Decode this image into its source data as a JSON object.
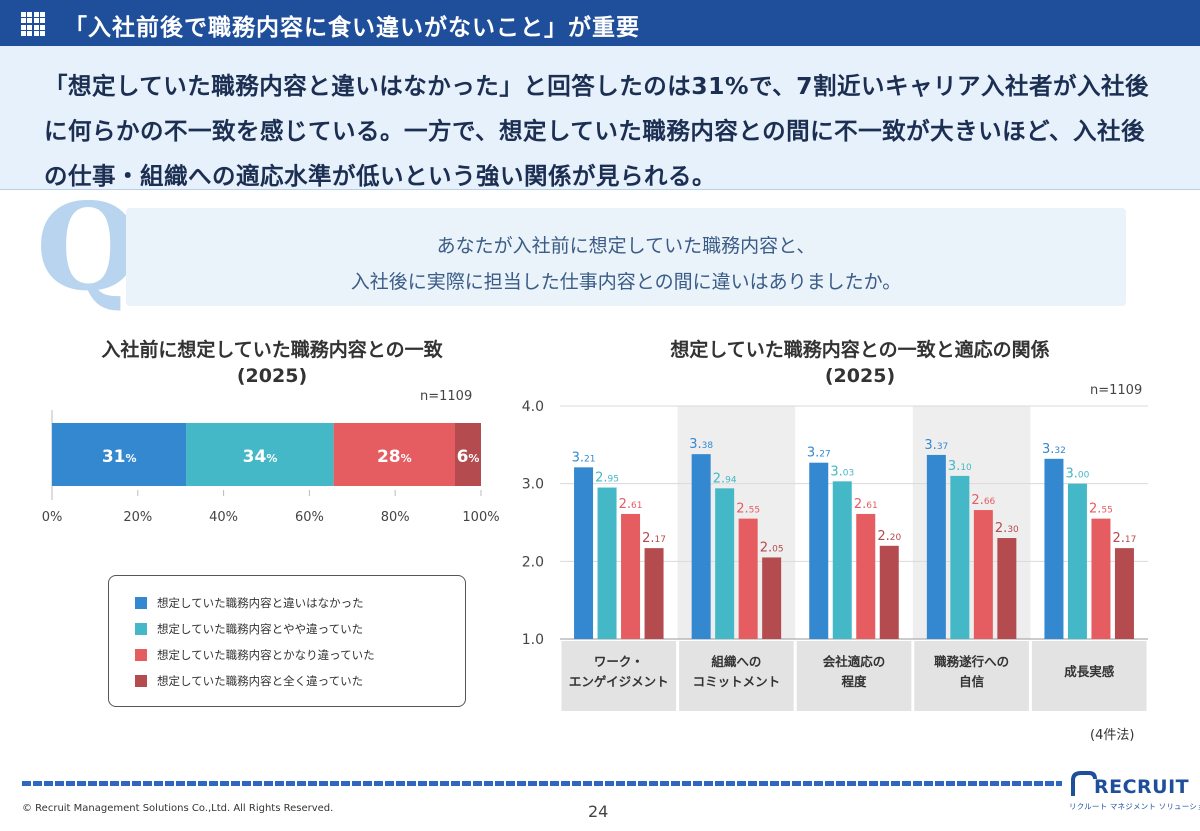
{
  "header": {
    "title": "「入社前後で職務内容に食い違いがないこと」が重要"
  },
  "summary": {
    "text": "「想定していた職務内容と違いはなかった」と回答したのは31%で、7割近いキャリア入社者が入社後に何らかの不一致を感じている。一方で、想定していた職務内容との間に不一致が大きいほど、入社後の仕事・組織への適応水準が低いという強い関係が見られる。"
  },
  "question": {
    "letter": "Q",
    "line1": "あなたが入社前に想定していた職務内容と、",
    "line2": "入社後に実際に担当した仕事内容との間に違いはありましたか。"
  },
  "colors": {
    "blue": "#3488d0",
    "teal": "#44b8c6",
    "red": "#e55c61",
    "darkred": "#b44b4e"
  },
  "legend": {
    "items": [
      {
        "label": "想定していた職務内容と違いはなかった",
        "color": "#3488d0"
      },
      {
        "label": "想定していた職務内容とやや違っていた",
        "color": "#44b8c6"
      },
      {
        "label": "想定していた職務内容とかなり違っていた",
        "color": "#e55c61"
      },
      {
        "label": "想定していた職務内容と全く違っていた",
        "color": "#b44b4e"
      }
    ]
  },
  "footer": {
    "copyright": "© Recruit Management Solutions Co.,Ltd. All Rights Reserved.",
    "page": "24",
    "logo": "RECRUIT",
    "logo_sub": "リクルート マネジメント ソリューションズ"
  },
  "chart_data": [
    {
      "type": "bar",
      "orientation": "horizontal-stacked",
      "title": "入社前に想定していた職務内容との一致",
      "subtitle": "(2025)",
      "n_label": "n=1109",
      "values": [
        31,
        34,
        28,
        6
      ],
      "value_labels": [
        "31",
        "34",
        "28",
        "6"
      ],
      "unit": "%",
      "xticks": [
        "0%",
        "20%",
        "40%",
        "60%",
        "80%",
        "100%"
      ],
      "xlim": [
        0,
        100
      ]
    },
    {
      "type": "bar",
      "title": "想定していた職務内容との一致と適応の関係",
      "subtitle": "(2025)",
      "n_label": "n=1109",
      "note": "(4件法)",
      "ylim": [
        1.0,
        4.0
      ],
      "yticks": [
        "1.0",
        "2.0",
        "3.0",
        "4.0"
      ],
      "categories": [
        [
          "ワーク・",
          "エンゲイジメント"
        ],
        [
          "組織への",
          "コミットメント"
        ],
        [
          "会社適応の",
          "程度"
        ],
        [
          "職務遂行への",
          "自信"
        ],
        [
          "成長実感"
        ]
      ],
      "series": [
        {
          "values": [
            3.21,
            3.38,
            3.27,
            3.37,
            3.32
          ]
        },
        {
          "values": [
            2.95,
            2.94,
            3.03,
            3.1,
            3.0
          ]
        },
        {
          "values": [
            2.61,
            2.55,
            2.61,
            2.66,
            2.55
          ]
        },
        {
          "values": [
            2.17,
            2.05,
            2.2,
            2.3,
            2.17
          ]
        }
      ]
    }
  ]
}
